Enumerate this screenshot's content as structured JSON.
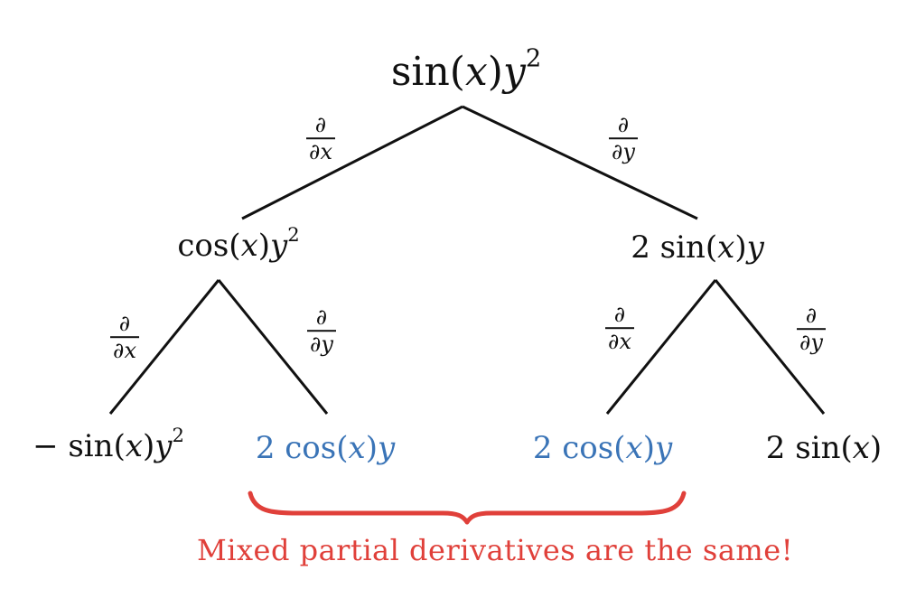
{
  "nodes": {
    "root": {
      "pre": "sin(",
      "var": "x",
      "post": ")",
      "var2": "y",
      "sup": "2"
    },
    "left": {
      "pre": "cos(",
      "var": "x",
      "post": ")",
      "var2": "y",
      "sup": "2"
    },
    "right": {
      "pre": "2 sin(",
      "var": "x",
      "post": ")",
      "var2": "y",
      "sup": ""
    },
    "ll": {
      "pre": "− sin(",
      "var": "x",
      "post": ")",
      "var2": "y",
      "sup": "2"
    },
    "lr": {
      "pre": "2 cos(",
      "var": "x",
      "post": ")",
      "var2": "y",
      "sup": ""
    },
    "rl": {
      "pre": "2 cos(",
      "var": "x",
      "post": ")",
      "var2": "y",
      "sup": ""
    },
    "rr": {
      "pre": "2 sin(",
      "var": "x",
      "post": ")",
      "var2": "",
      "sup": ""
    }
  },
  "operators": {
    "d_dx": {
      "num": "∂",
      "den_d": "∂",
      "den_var": "x"
    },
    "d_dy": {
      "num": "∂",
      "den_d": "∂",
      "den_var": "y"
    }
  },
  "caption": "Mixed partial derivatives are the same!",
  "colors": {
    "mixed": "#3a74b7",
    "brace": "#e0403a",
    "caption": "#e0403a",
    "lines": "#111111"
  }
}
